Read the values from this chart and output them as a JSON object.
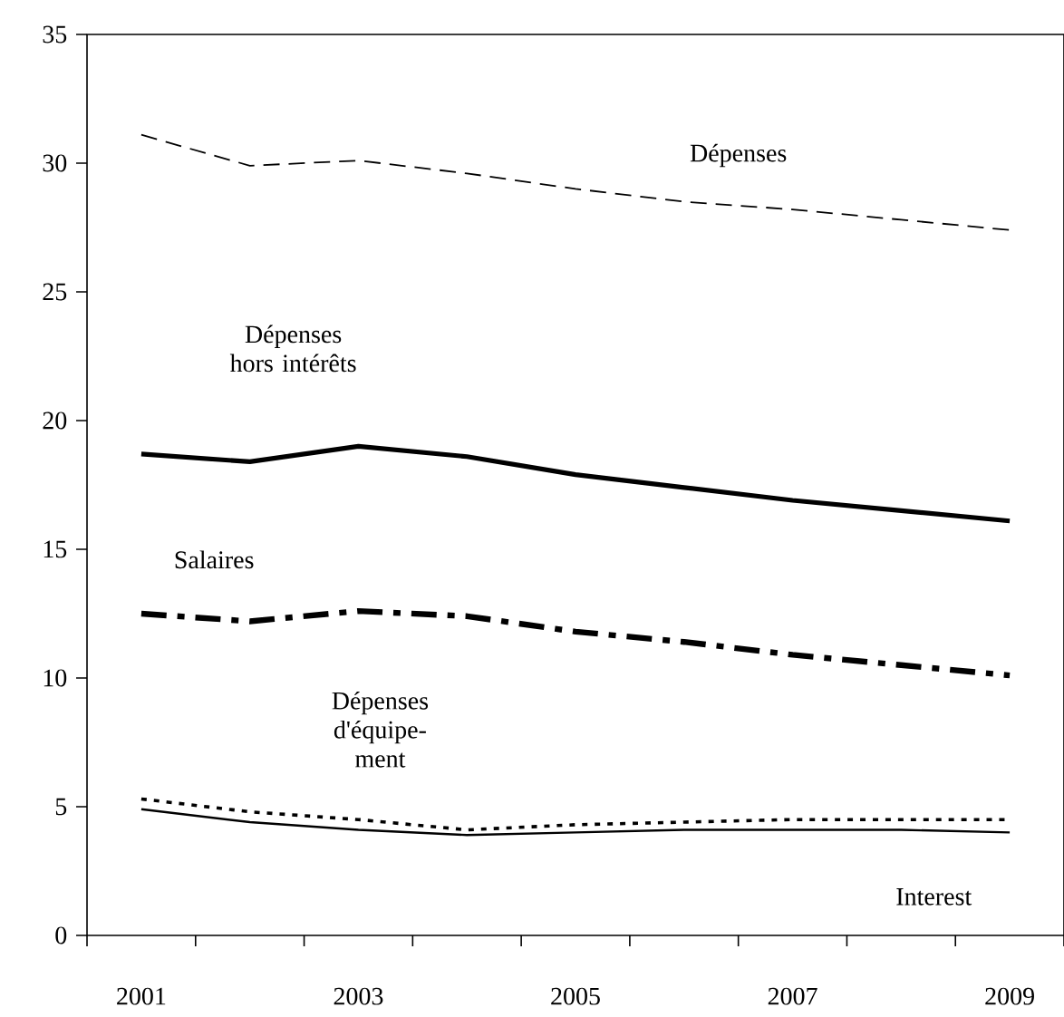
{
  "chart_data": {
    "type": "line",
    "categories": [
      "2001",
      null,
      "2003",
      null,
      "2005",
      null,
      "2007",
      null,
      "2009"
    ],
    "ylim": [
      0,
      35
    ],
    "yticks": [
      0,
      5,
      10,
      15,
      20,
      25,
      30,
      35
    ],
    "legend": false,
    "grid": false,
    "marker": "none",
    "series": [
      {
        "name": "Dépenses",
        "color": "#000000",
        "line_style": "dashed",
        "values": [
          31.1,
          29.9,
          30.1,
          29.6,
          29.0,
          28.5,
          28.2,
          27.8,
          27.4
        ]
      },
      {
        "name": "Dépenses hors intérêts",
        "color": "#000000",
        "line_style": "solid",
        "values": [
          18.7,
          18.4,
          19.0,
          18.6,
          17.9,
          17.4,
          16.9,
          16.5,
          16.1
        ]
      },
      {
        "name": "Salaires",
        "color": "#000000",
        "line_style": "dashdot",
        "values": [
          12.5,
          12.2,
          12.6,
          12.4,
          11.8,
          11.4,
          10.9,
          10.5,
          10.1
        ]
      },
      {
        "name": "Dépenses d'équipe-ment",
        "color": "#000000",
        "line_style": "dotted",
        "values": [
          5.3,
          4.8,
          4.5,
          4.1,
          4.3,
          4.4,
          4.5,
          4.5,
          4.5
        ]
      },
      {
        "name": "Interest",
        "color": "#000000",
        "line_style": "solid",
        "values": [
          4.9,
          4.4,
          4.1,
          3.9,
          4.0,
          4.1,
          4.1,
          4.1,
          4.0
        ]
      }
    ]
  }
}
